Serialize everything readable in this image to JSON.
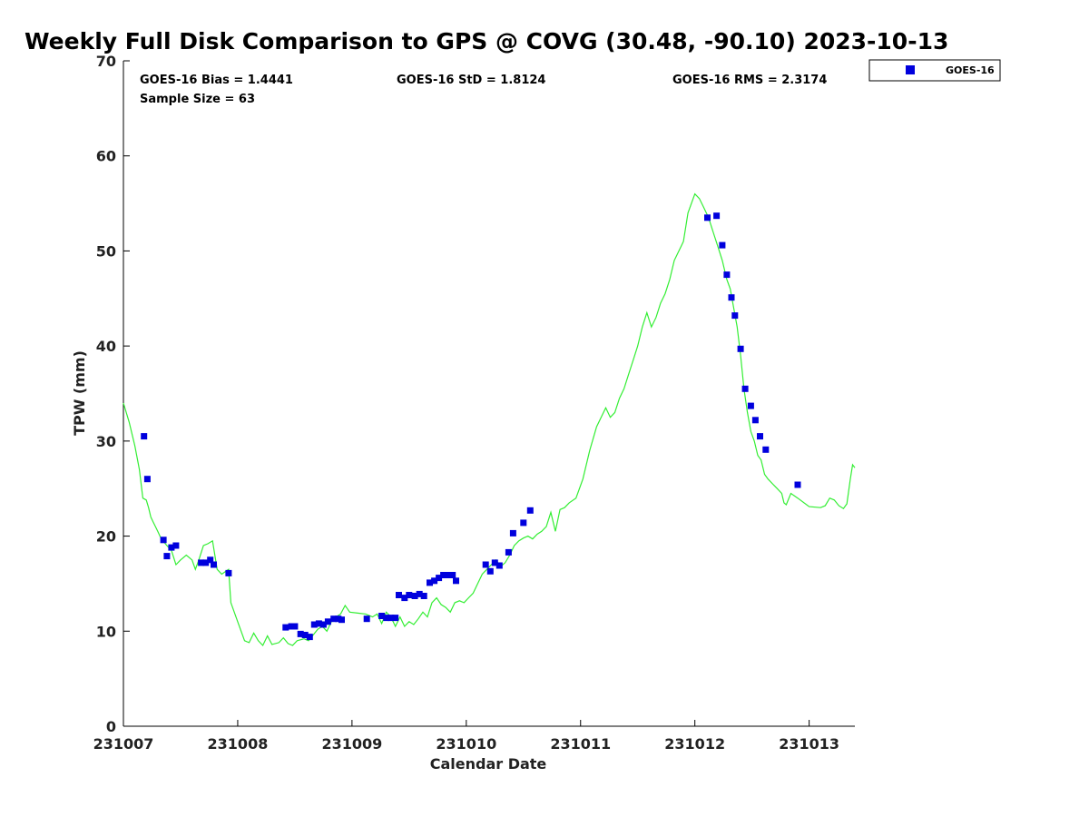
{
  "chart_data": {
    "type": "scatter",
    "title": "Weekly Full Disk Comparison to GPS @ COVG (30.48, -90.10) 2023-10-13",
    "xlabel": "Calendar Date",
    "ylabel": "TPW (mm)",
    "xlim": [
      0,
      6.4
    ],
    "ylim": [
      0,
      70
    ],
    "x_unit": "days since 231007 00Z",
    "x_tick_values": [
      0,
      1,
      2,
      3,
      4,
      5,
      6
    ],
    "x_tick_labels": [
      "231007",
      "231008",
      "231009",
      "231010",
      "231011",
      "231012",
      "231013"
    ],
    "y_tick_values": [
      0,
      10,
      20,
      30,
      40,
      50,
      60,
      70
    ],
    "y_tick_labels": [
      "0",
      "10",
      "20",
      "30",
      "40",
      "50",
      "60",
      "70"
    ],
    "grid": false,
    "legend_position": "top-right-outside",
    "stats": {
      "bias": "GOES-16 Bias = 1.4441",
      "std": "GOES-16 StD = 1.8124",
      "rms": "GOES-16 RMS = 2.3174",
      "sample": "Sample Size = 63"
    },
    "series": [
      {
        "name": "GOES-16",
        "type": "scatter",
        "color": "#0000dd",
        "marker": "square",
        "x": [
          0.18,
          0.21,
          0.35,
          0.38,
          0.42,
          0.46,
          0.68,
          0.72,
          0.76,
          0.79,
          0.92,
          1.42,
          1.47,
          1.5,
          1.55,
          1.59,
          1.63,
          1.67,
          1.71,
          1.75,
          1.79,
          1.84,
          1.88,
          1.91,
          2.13,
          2.26,
          2.3,
          2.34,
          2.38,
          2.41,
          2.46,
          2.5,
          2.55,
          2.59,
          2.63,
          2.68,
          2.72,
          2.76,
          2.8,
          2.84,
          2.88,
          2.91,
          3.17,
          3.21,
          3.25,
          3.29,
          3.37,
          3.41,
          3.5,
          3.56,
          5.11,
          5.19,
          5.24,
          5.28,
          5.32,
          5.35,
          5.4,
          5.44,
          5.49,
          5.53,
          5.57,
          5.62,
          5.9
        ],
        "y": [
          30.5,
          26.0,
          19.6,
          17.9,
          18.8,
          19.0,
          17.2,
          17.2,
          17.5,
          17.0,
          16.1,
          10.4,
          10.5,
          10.5,
          9.7,
          9.6,
          9.4,
          10.7,
          10.8,
          10.7,
          11.0,
          11.3,
          11.3,
          11.2,
          11.3,
          11.6,
          11.4,
          11.4,
          11.4,
          13.8,
          13.5,
          13.8,
          13.7,
          13.9,
          13.7,
          15.1,
          15.3,
          15.6,
          15.9,
          15.9,
          15.9,
          15.3,
          17.0,
          16.3,
          17.2,
          16.9,
          18.3,
          20.3,
          21.4,
          22.7,
          53.5,
          53.7,
          50.6,
          47.5,
          45.1,
          43.2,
          39.7,
          35.5,
          33.7,
          32.2,
          30.5,
          29.1,
          25.4
        ]
      },
      {
        "name": "GPS",
        "type": "line",
        "color": "#33ee33",
        "x": [
          0.0,
          0.05,
          0.1,
          0.14,
          0.17,
          0.2,
          0.22,
          0.24,
          0.26,
          0.28,
          0.3,
          0.32,
          0.34,
          0.36,
          0.38,
          0.42,
          0.46,
          0.5,
          0.55,
          0.6,
          0.63,
          0.66,
          0.7,
          0.74,
          0.78,
          0.82,
          0.86,
          0.92,
          0.94,
          1.0,
          1.06,
          1.1,
          1.14,
          1.18,
          1.22,
          1.26,
          1.3,
          1.36,
          1.4,
          1.44,
          1.48,
          1.52,
          1.58,
          1.62,
          1.66,
          1.7,
          1.74,
          1.78,
          1.82,
          1.86,
          1.9,
          1.94,
          1.98,
          2.05,
          2.12,
          2.18,
          2.22,
          2.26,
          2.3,
          2.34,
          2.38,
          2.42,
          2.46,
          2.5,
          2.54,
          2.58,
          2.62,
          2.66,
          2.7,
          2.74,
          2.78,
          2.82,
          2.86,
          2.9,
          2.94,
          2.98,
          3.02,
          3.06,
          3.1,
          3.14,
          3.18,
          3.22,
          3.26,
          3.3,
          3.34,
          3.38,
          3.42,
          3.46,
          3.5,
          3.54,
          3.58,
          3.62,
          3.66,
          3.7,
          3.74,
          3.78,
          3.82,
          3.86,
          3.9,
          3.96,
          4.02,
          4.08,
          4.14,
          4.18,
          4.22,
          4.26,
          4.3,
          4.34,
          4.38,
          4.42,
          4.46,
          4.5,
          4.54,
          4.58,
          4.62,
          4.66,
          4.7,
          4.74,
          4.78,
          4.82,
          4.86,
          4.88,
          4.9,
          4.92,
          4.94,
          4.97,
          5.0,
          5.04,
          5.08,
          5.12,
          5.16,
          5.2,
          5.24,
          5.26,
          5.28,
          5.31,
          5.34,
          5.37,
          5.4,
          5.43,
          5.46,
          5.49,
          5.52,
          5.55,
          5.58,
          5.61,
          5.64,
          5.68,
          5.72,
          5.76,
          5.78,
          5.8,
          5.84,
          5.9,
          6.0,
          6.1,
          6.14,
          6.18,
          6.22,
          6.26,
          6.3,
          6.33,
          6.36,
          6.38,
          6.4
        ],
        "y": [
          34.0,
          32.0,
          29.5,
          27.0,
          24.0,
          23.8,
          23.0,
          22.0,
          21.5,
          21.0,
          20.5,
          20.0,
          19.5,
          19.3,
          19.0,
          18.5,
          17.0,
          17.5,
          18.0,
          17.5,
          16.5,
          17.5,
          19.0,
          19.2,
          19.5,
          16.5,
          16.0,
          16.5,
          13.0,
          11.0,
          9.0,
          8.8,
          9.8,
          9.0,
          8.5,
          9.5,
          8.6,
          8.8,
          9.3,
          8.7,
          8.5,
          9.0,
          9.2,
          9.0,
          9.6,
          10.2,
          10.5,
          10.0,
          11.0,
          11.5,
          11.8,
          12.7,
          12.0,
          11.9,
          11.8,
          11.5,
          11.8,
          10.8,
          12.0,
          11.5,
          10.5,
          11.5,
          10.5,
          11.0,
          10.7,
          11.3,
          12.0,
          11.5,
          13.0,
          13.5,
          12.8,
          12.5,
          12.0,
          13.0,
          13.2,
          13.0,
          13.5,
          14.0,
          15.0,
          16.0,
          16.5,
          17.0,
          17.5,
          16.8,
          17.2,
          18.0,
          19.0,
          19.5,
          19.8,
          20.0,
          19.7,
          20.2,
          20.5,
          21.0,
          22.5,
          20.5,
          22.8,
          23.0,
          23.5,
          24.0,
          26.0,
          29.0,
          31.5,
          32.5,
          33.5,
          32.5,
          33.0,
          34.5,
          35.5,
          37.0,
          38.5,
          40.0,
          42.0,
          43.5,
          42.0,
          43.0,
          44.5,
          45.5,
          47.0,
          49.0,
          50.0,
          50.5,
          51.0,
          52.5,
          54.0,
          55.0,
          56.0,
          55.5,
          54.5,
          53.5,
          52.0,
          50.5,
          49.0,
          48.0,
          47.0,
          46.0,
          44.0,
          42.0,
          39.0,
          35.5,
          33.0,
          31.0,
          30.0,
          28.5,
          28.0,
          26.5,
          26.0,
          25.5,
          25.0,
          24.5,
          23.5,
          23.3,
          24.5,
          24.0,
          23.1,
          23.0,
          23.2,
          24.0,
          23.8,
          23.2,
          22.9,
          23.4,
          26.0,
          27.5,
          27.2
        ]
      }
    ]
  }
}
